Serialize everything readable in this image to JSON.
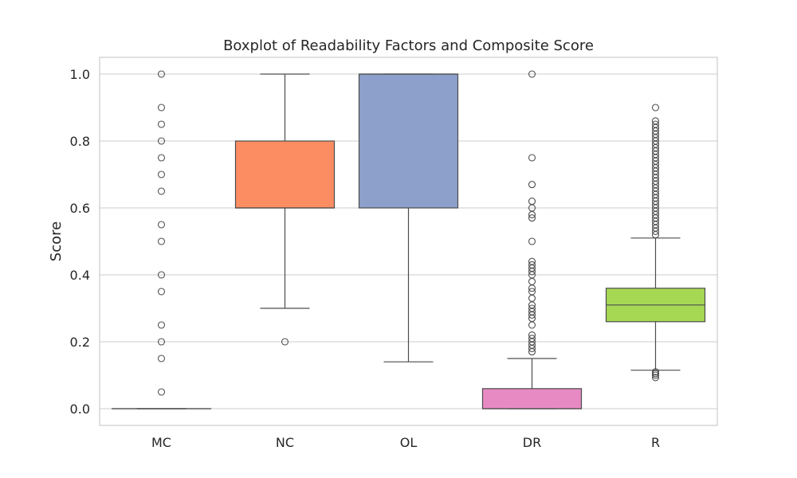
{
  "chart_data": {
    "type": "boxplot",
    "title": "Boxplot of Readability Factors and Composite Score",
    "xlabel": "",
    "ylabel": "Score",
    "ylim": [
      -0.05,
      1.05
    ],
    "yticks": [
      0.0,
      0.2,
      0.4,
      0.6,
      0.8,
      1.0
    ],
    "ytick_labels": [
      "0.0",
      "0.2",
      "0.4",
      "0.6",
      "0.8",
      "1.0"
    ],
    "grid": true,
    "categories": [
      "MC",
      "NC",
      "OL",
      "DR",
      "R"
    ],
    "boxes": [
      {
        "name": "MC",
        "color": "#66c2a5",
        "whislo": 0.0,
        "q1": 0.0,
        "median": 0.0,
        "q3": 0.0,
        "whishi": 0.0,
        "fliers": [
          0.05,
          0.15,
          0.2,
          0.25,
          0.35,
          0.4,
          0.5,
          0.55,
          0.65,
          0.7,
          0.75,
          0.8,
          0.85,
          0.9,
          1.0
        ]
      },
      {
        "name": "NC",
        "color": "#fc8d62",
        "whislo": 0.3,
        "q1": 0.6,
        "median": 0.6,
        "q3": 0.8,
        "whishi": 1.0,
        "fliers": [
          0.2
        ]
      },
      {
        "name": "OL",
        "color": "#8da0cb",
        "whislo": 0.14,
        "q1": 0.6,
        "median": 1.0,
        "q3": 1.0,
        "whishi": 1.0,
        "fliers": []
      },
      {
        "name": "DR",
        "color": "#e78ac3",
        "whislo": 0.0,
        "q1": 0.0,
        "median": 0.0,
        "q3": 0.06,
        "whishi": 0.15,
        "fliers": [
          0.17,
          0.18,
          0.19,
          0.2,
          0.21,
          0.22,
          0.25,
          0.27,
          0.28,
          0.29,
          0.3,
          0.31,
          0.33,
          0.35,
          0.36,
          0.38,
          0.4,
          0.41,
          0.42,
          0.43,
          0.44,
          0.5,
          0.57,
          0.58,
          0.6,
          0.62,
          0.67,
          0.75,
          1.0
        ]
      },
      {
        "name": "R",
        "color": "#a6d854",
        "whislo": 0.115,
        "q1": 0.26,
        "median": 0.31,
        "q3": 0.36,
        "whishi": 0.51,
        "fliers": [
          0.093,
          0.1,
          0.105,
          0.11,
          0.52,
          0.53,
          0.54,
          0.55,
          0.56,
          0.57,
          0.58,
          0.59,
          0.6,
          0.61,
          0.62,
          0.63,
          0.64,
          0.65,
          0.66,
          0.67,
          0.68,
          0.69,
          0.7,
          0.71,
          0.72,
          0.73,
          0.74,
          0.75,
          0.76,
          0.77,
          0.78,
          0.79,
          0.8,
          0.81,
          0.82,
          0.83,
          0.84,
          0.85,
          0.86,
          0.9
        ]
      }
    ]
  }
}
